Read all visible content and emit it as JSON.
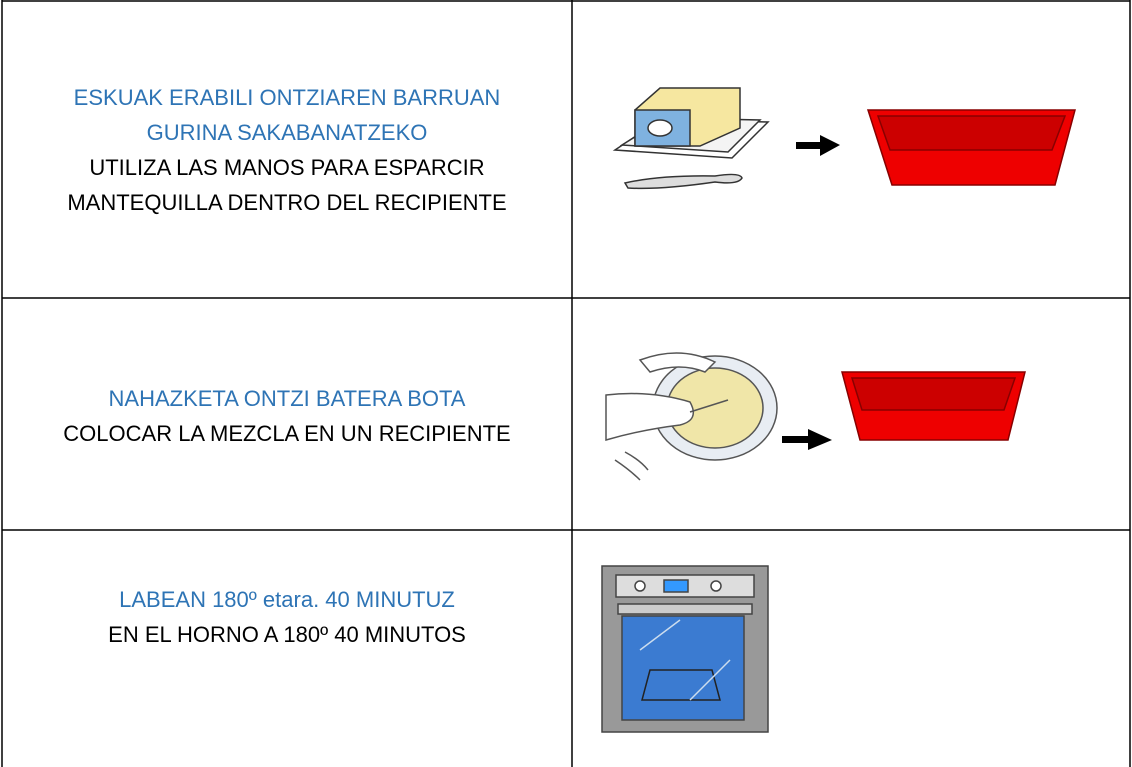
{
  "table": {
    "rows": [
      {
        "basque": [
          "ESKUAK ERABILI ONTZIAREN BARRUAN",
          "GURINA SAKABANATZEKO"
        ],
        "spanish": [
          "UTILIZA LAS MANOS PARA ESPARCIR",
          "MANTEQUILLA DENTRO DEL RECIPIENTE"
        ]
      },
      {
        "basque": [
          "NAHAZKETA ONTZI BATERA BOTA"
        ],
        "spanish": [
          "COLOCAR LA MEZCLA EN UN RECIPIENTE"
        ]
      },
      {
        "basque": [
          "LABEAN 180º etara. 40 MINUTUZ"
        ],
        "spanish": [
          "EN EL HORNO A 180º 40 MINUTOS"
        ]
      }
    ]
  }
}
